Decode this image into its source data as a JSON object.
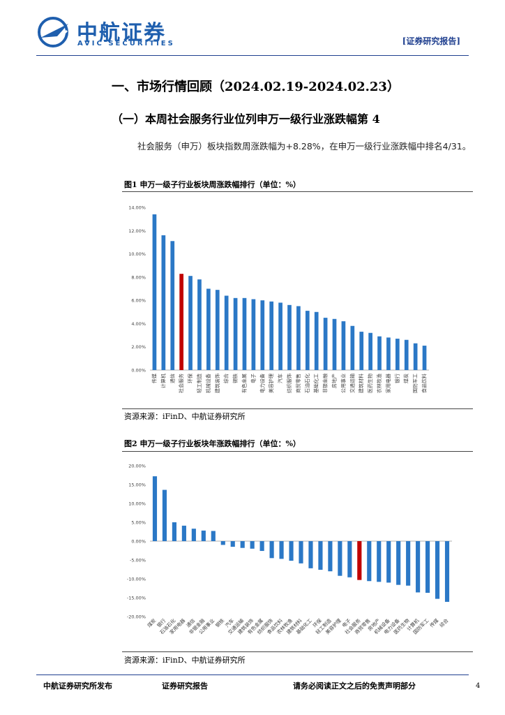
{
  "header": {
    "logo_cn": "中航证券",
    "logo_en": "AVIC SECURITIES",
    "report_tag": "[证券研究报告]"
  },
  "section_title": "一、市场行情回顾（2024.02.19-2024.02.23）",
  "subsection_title": "（一）本周社会服务行业位列申万一级行业涨跌幅第 4",
  "paragraph": "社会服务（申万）板块指数周涨跌幅为+8.28%，在申万一级行业涨跌幅中排名4/31。",
  "chart_data": [
    {
      "type": "bar",
      "title": "图1 申万一级子行业板块周涨跌幅排行（单位：%）",
      "source": "资源来源：iFinD、中航证券研究所",
      "categories": [
        "传媒",
        "计算机",
        "通信",
        "社会服务",
        "环保",
        "轻工制造",
        "机械设备",
        "建筑装饰",
        "综合",
        "钢铁",
        "有色金属",
        "电子",
        "电力设备",
        "美容护理",
        "汽车",
        "纺织服饰",
        "商贸零售",
        "石油石化",
        "基础化工",
        "非银金融",
        "房地产",
        "公用事业",
        "交通运输",
        "建筑材料",
        "医药生物",
        "农林牧渔",
        "家用电器",
        "银行",
        "煤炭",
        "国防军工",
        "食品饮料"
      ],
      "values": [
        13.4,
        11.6,
        11.1,
        8.28,
        8.1,
        7.8,
        7.0,
        6.9,
        6.4,
        6.2,
        6.2,
        6.1,
        6.0,
        5.9,
        5.8,
        5.6,
        5.5,
        5.1,
        5.0,
        4.5,
        4.4,
        4.2,
        3.8,
        3.3,
        3.2,
        2.9,
        2.8,
        2.7,
        2.6,
        2.3,
        2.1
      ],
      "colors": [
        "#2b78c6",
        "#2b78c6",
        "#2b78c6",
        "#c00000",
        "#2b78c6",
        "#2b78c6",
        "#2b78c6",
        "#2b78c6",
        "#2b78c6",
        "#2b78c6",
        "#2b78c6",
        "#2b78c6",
        "#2b78c6",
        "#2b78c6",
        "#2b78c6",
        "#2b78c6",
        "#2b78c6",
        "#2b78c6",
        "#2b78c6",
        "#2b78c6",
        "#2b78c6",
        "#2b78c6",
        "#2b78c6",
        "#2b78c6",
        "#2b78c6",
        "#2b78c6",
        "#2b78c6",
        "#2b78c6",
        "#2b78c6",
        "#2b78c6",
        "#2b78c6"
      ],
      "ylim": [
        0,
        14
      ],
      "yticks": [
        {
          "value": 0,
          "label": "0.00%"
        },
        {
          "value": 2,
          "label": "2.00%"
        },
        {
          "value": 4,
          "label": "4.00%"
        },
        {
          "value": 6,
          "label": "6.00%"
        },
        {
          "value": 8,
          "label": "8.00%"
        },
        {
          "value": 10,
          "label": "10.00%"
        },
        {
          "value": 12,
          "label": "12.00%"
        },
        {
          "value": 14,
          "label": "14.00%"
        }
      ],
      "grid": false
    },
    {
      "type": "bar",
      "title": "图2 申万一级子行业板块年涨跌幅排行（单位：%）",
      "source": "资源来源：iFinD、中航证券研究所",
      "categories": [
        "煤炭",
        "银行",
        "石油石化",
        "家用电器",
        "通信",
        "非银金融",
        "公用事业",
        "钢铁",
        "汽车",
        "交通运输",
        "建筑装饰",
        "有色金属",
        "纺织服饰",
        "食品饮料",
        "农林牧渔",
        "建筑材料",
        "基础化工",
        "环保",
        "轻工制造",
        "美容护理",
        "电子",
        "社会服务",
        "商贸零售",
        "房地产",
        "机械设备",
        "电力设备",
        "医药生物",
        "计算机",
        "国防军工",
        "传媒",
        "综合"
      ],
      "values": [
        17.2,
        13.6,
        5.0,
        4.1,
        3.3,
        2.8,
        2.7,
        -1.0,
        -1.5,
        -1.8,
        -2.0,
        -2.6,
        -4.5,
        -4.7,
        -5.2,
        -5.9,
        -7.2,
        -7.6,
        -8.0,
        -9.2,
        -9.6,
        -10.3,
        -10.6,
        -10.8,
        -11.0,
        -11.6,
        -11.8,
        -13.6,
        -13.7,
        -15.3,
        -16.1
      ],
      "colors": [
        "#2b78c6",
        "#2b78c6",
        "#2b78c6",
        "#2b78c6",
        "#2b78c6",
        "#2b78c6",
        "#2b78c6",
        "#2b78c6",
        "#2b78c6",
        "#2b78c6",
        "#2b78c6",
        "#2b78c6",
        "#2b78c6",
        "#2b78c6",
        "#2b78c6",
        "#2b78c6",
        "#2b78c6",
        "#2b78c6",
        "#2b78c6",
        "#2b78c6",
        "#2b78c6",
        "#c00000",
        "#2b78c6",
        "#2b78c6",
        "#2b78c6",
        "#2b78c6",
        "#2b78c6",
        "#2b78c6",
        "#2b78c6",
        "#2b78c6",
        "#2b78c6"
      ],
      "ylim": [
        -20,
        20
      ],
      "yticks": [
        {
          "value": -20,
          "label": "-20.00%"
        },
        {
          "value": -15,
          "label": "-15.00%"
        },
        {
          "value": -10,
          "label": "-10.00%"
        },
        {
          "value": -5,
          "label": "-5.00%"
        },
        {
          "value": 0,
          "label": "0.00%"
        },
        {
          "value": 5,
          "label": "5.00%"
        },
        {
          "value": 10,
          "label": "10.00%"
        },
        {
          "value": 15,
          "label": "15.00%"
        },
        {
          "value": 20,
          "label": "20.00%"
        }
      ],
      "grid": false
    }
  ],
  "footer": {
    "left": "中航证券研究所发布",
    "center": "证券研究报告",
    "right": "请务必阅读正文之后的免责声明部分",
    "page": "4"
  }
}
